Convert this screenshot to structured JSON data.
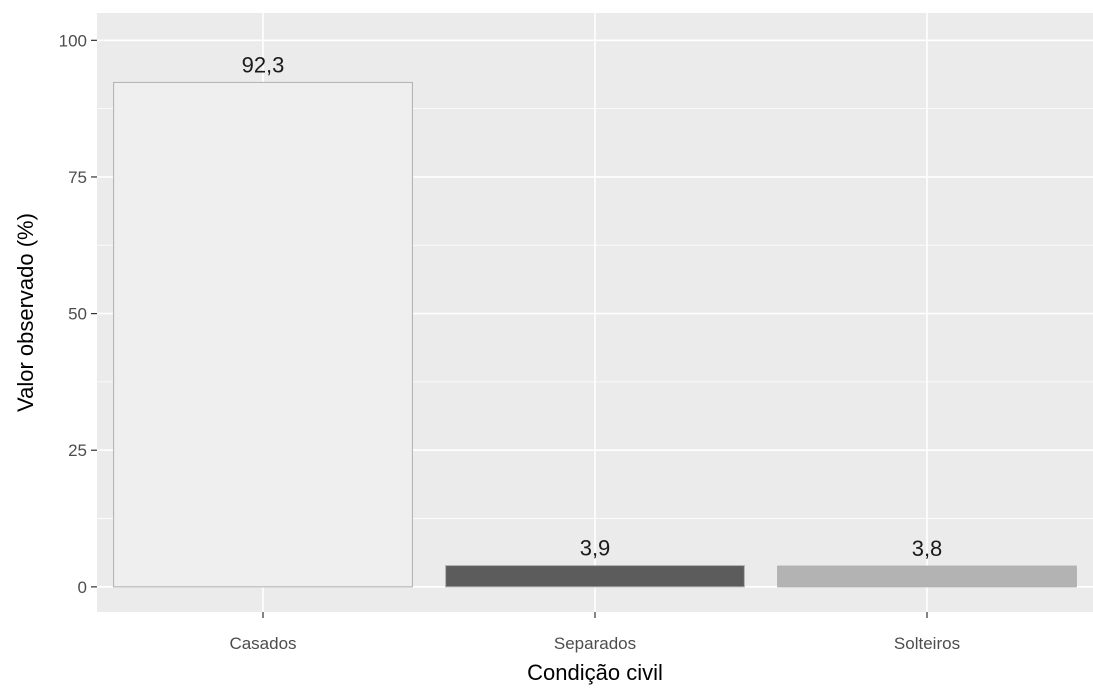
{
  "chart_data": {
    "type": "bar",
    "title": "",
    "xlabel": "Condição civil",
    "ylabel": "Valor observado (%)",
    "categories": [
      "Casados",
      "Separados",
      "Solteiros"
    ],
    "values": [
      92.3,
      3.9,
      3.8
    ],
    "value_labels": [
      "92,3",
      "3,9",
      "3,8"
    ],
    "bar_colors": [
      "#efefef",
      "#5c5c5c",
      "#b3b3b3"
    ],
    "bar_outline": "#b0b0b0",
    "yticks": [
      0,
      25,
      50,
      75,
      100
    ],
    "ytick_labels": [
      "0",
      "25",
      "50",
      "75",
      "100"
    ],
    "ylim": [
      -4.6,
      105
    ],
    "grid": true,
    "panel_background": "#ebebeb",
    "grid_color": "#ffffff",
    "legend": "none"
  }
}
